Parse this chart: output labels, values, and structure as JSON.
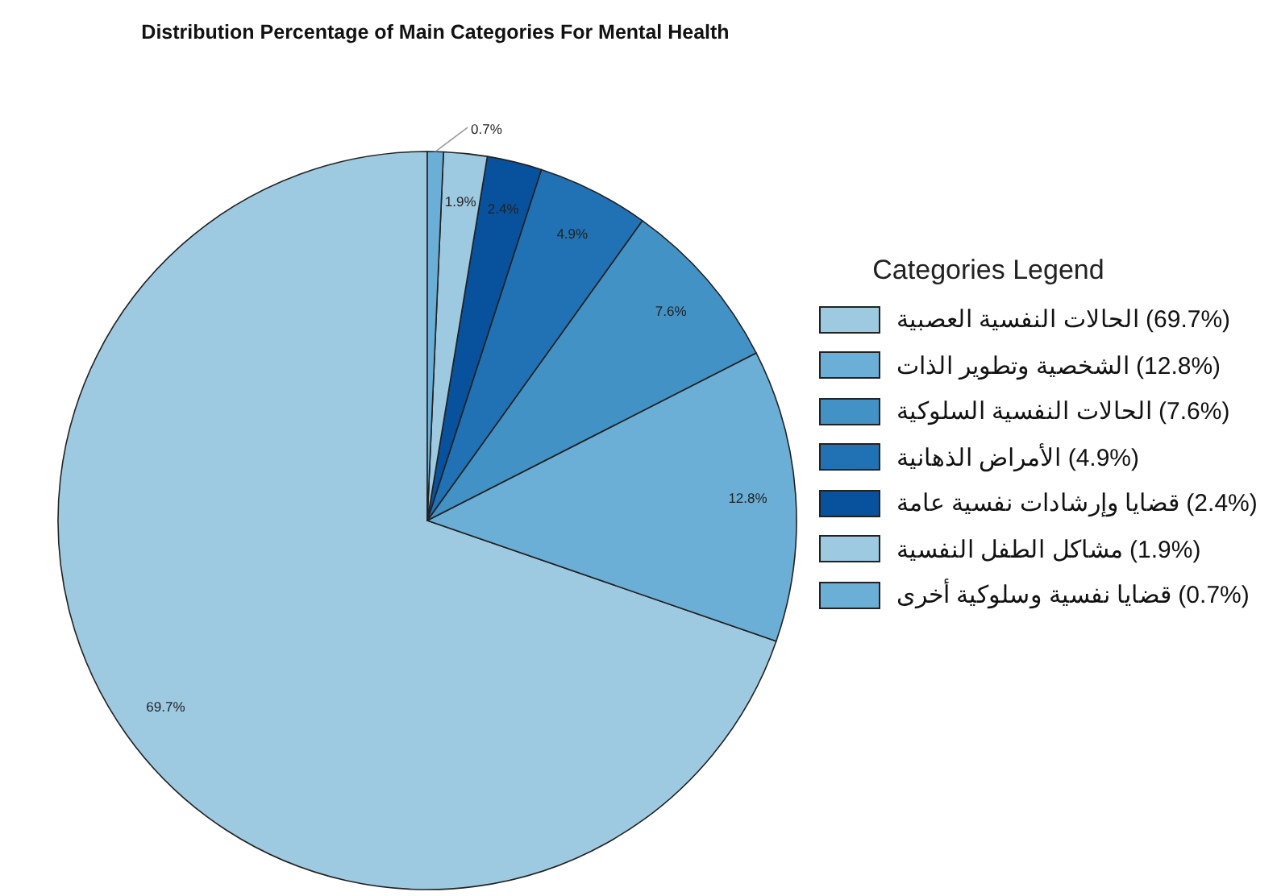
{
  "chart_data": {
    "type": "pie",
    "title": "Distribution Percentage of Main Categories For Mental Health",
    "legend_title": "Categories Legend",
    "legend": "right",
    "categories": [
      "الحالات النفسية العصبية (69.7%)",
      "الشخصية وتطوير الذات (12.8%)",
      "الحالات النفسية السلوكية (7.6%)",
      "الأمراض الذهانية (4.9%)",
      "قضايا وإرشادات نفسية عامة (2.4%)",
      "مشاكل الطفل النفسية (1.9%)",
      "قضايا نفسية وسلوكية أخرى (0.7%)"
    ],
    "values": [
      69.7,
      12.8,
      7.6,
      4.9,
      2.4,
      1.9,
      0.7
    ],
    "value_labels": [
      "69.7%",
      "12.8%",
      "7.6%",
      "4.9%",
      "2.4%",
      "1.9%",
      "0.7%"
    ],
    "colors": [
      "#9ecae1",
      "#6baed6",
      "#4292c6",
      "#2171b5",
      "#08519c",
      "#9ecae1",
      "#6baed6"
    ]
  }
}
